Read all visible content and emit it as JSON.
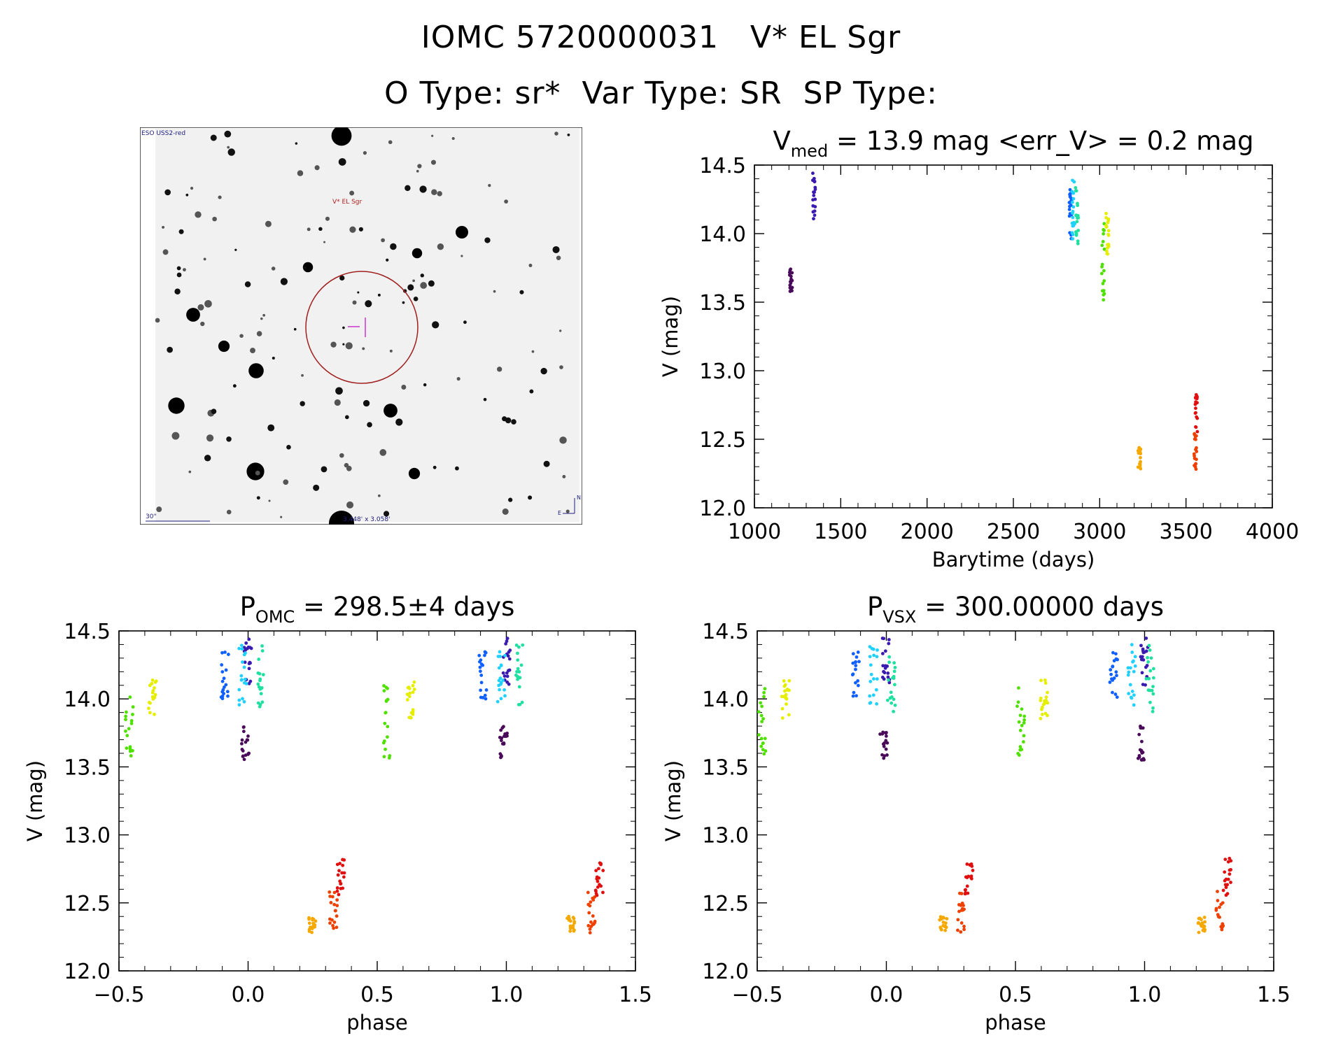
{
  "header": {
    "line1": "IOMC 5720000031   V* EL Sgr",
    "line2": "O Type: sr*  Var Type: SR  SP Type:"
  },
  "finder": {
    "survey": "ESO USS2-red",
    "target": "V* EL Sgr",
    "scale_label": "30\"",
    "fov_label": "3.448' x 3.058'",
    "north": "N",
    "east": "E"
  },
  "colors": {
    "purple_dark": "#4a0a5a",
    "violet": "#3a1ab0",
    "blue": "#1060ff",
    "cyan": "#20d0ff",
    "teal": "#20e0a0",
    "green": "#50e000",
    "yellow": "#e6ee00",
    "orange": "#f5a800",
    "redorange": "#ee4000",
    "red": "#e01010"
  },
  "chart_data": [
    {
      "id": "lightcurve",
      "type": "scatter",
      "title_main": "V",
      "title_sub": "med",
      "title_rest": " = 13.9 mag <err_V> = 0.2 mag",
      "xlabel": "Barytime (days)",
      "ylabel": "V (mag)",
      "xlim": [
        1000,
        4000
      ],
      "ylim": [
        14.5,
        12.0
      ],
      "xticks": [
        "1000",
        "1500",
        "2000",
        "2500",
        "3000",
        "3500",
        "4000"
      ],
      "yticks": [
        "12.0",
        "12.5",
        "13.0",
        "13.5",
        "14.0",
        "14.5"
      ],
      "groups": [
        {
          "color": "purple_dark",
          "x": 1212,
          "ymin": 13.55,
          "ymax": 13.8
        },
        {
          "color": "violet",
          "x": 1345,
          "ymin": 14.1,
          "ymax": 14.45
        },
        {
          "color": "blue",
          "x": 2830,
          "ymin": 13.95,
          "ymax": 14.35
        },
        {
          "color": "cyan",
          "x": 2848,
          "ymin": 13.95,
          "ymax": 14.4
        },
        {
          "color": "teal",
          "x": 2868,
          "ymin": 13.9,
          "ymax": 14.35
        },
        {
          "color": "green",
          "x": 3020,
          "ymin": 13.5,
          "ymax": 14.1
        },
        {
          "color": "yellow",
          "x": 3045,
          "ymin": 13.85,
          "ymax": 14.15
        },
        {
          "color": "orange",
          "x": 3230,
          "ymin": 12.28,
          "ymax": 12.44
        },
        {
          "color": "redorange",
          "x": 3555,
          "ymin": 12.28,
          "ymax": 12.55
        },
        {
          "color": "red",
          "x": 3560,
          "ymin": 12.55,
          "ymax": 12.83
        }
      ]
    },
    {
      "id": "phase_omc",
      "type": "scatter",
      "title_main": "P",
      "title_sub": "OMC",
      "title_rest": " = 298.5±4 days",
      "xlabel": "phase",
      "ylabel": "V (mag)",
      "xlim": [
        -0.5,
        1.5
      ],
      "ylim": [
        14.5,
        12.0
      ],
      "xticks": [
        "−0.5",
        "0.0",
        "0.5",
        "1.0",
        "1.5"
      ],
      "yticks": [
        "12.0",
        "12.5",
        "13.0",
        "13.5",
        "14.0",
        "14.5"
      ],
      "groups": [
        {
          "color": "purple_dark",
          "phase": -0.01,
          "ymin": 13.55,
          "ymax": 13.8
        },
        {
          "color": "violet",
          "phase": 0.0,
          "ymin": 14.1,
          "ymax": 14.45
        },
        {
          "color": "blue",
          "phase": -0.09,
          "ymin": 14.0,
          "ymax": 14.35
        },
        {
          "color": "cyan",
          "phase": -0.02,
          "ymin": 13.95,
          "ymax": 14.4
        },
        {
          "color": "teal",
          "phase": 0.05,
          "ymin": 13.9,
          "ymax": 14.4
        },
        {
          "color": "green",
          "phase": -0.46,
          "ymin": 13.55,
          "ymax": 14.1
        },
        {
          "color": "yellow",
          "phase": -0.37,
          "ymin": 13.85,
          "ymax": 14.15
        },
        {
          "color": "orange",
          "phase": 0.25,
          "ymin": 12.28,
          "ymax": 12.4
        },
        {
          "color": "redorange",
          "phase": 0.33,
          "ymin": 12.28,
          "ymax": 12.6
        },
        {
          "color": "red",
          "phase": 0.36,
          "ymin": 12.55,
          "ymax": 12.83
        }
      ]
    },
    {
      "id": "phase_vsx",
      "type": "scatter",
      "title_main": "P",
      "title_sub": "VSX",
      "title_rest": " = 300.00000 days",
      "xlabel": "phase",
      "ylabel": "V (mag)",
      "xlim": [
        -0.5,
        1.5
      ],
      "ylim": [
        14.5,
        12.0
      ],
      "xticks": [
        "−0.5",
        "0.0",
        "0.5",
        "1.0",
        "1.5"
      ],
      "yticks": [
        "12.0",
        "12.5",
        "13.0",
        "13.5",
        "14.0",
        "14.5"
      ],
      "groups": [
        {
          "color": "purple_dark",
          "phase": -0.01,
          "ymin": 13.55,
          "ymax": 13.8
        },
        {
          "color": "violet",
          "phase": 0.0,
          "ymin": 14.1,
          "ymax": 14.45
        },
        {
          "color": "blue",
          "phase": -0.12,
          "ymin": 14.0,
          "ymax": 14.35
        },
        {
          "color": "cyan",
          "phase": -0.05,
          "ymin": 13.95,
          "ymax": 14.4
        },
        {
          "color": "teal",
          "phase": 0.02,
          "ymin": 13.9,
          "ymax": 14.4
        },
        {
          "color": "green",
          "phase": -0.48,
          "ymin": 13.55,
          "ymax": 14.1
        },
        {
          "color": "yellow",
          "phase": -0.39,
          "ymin": 13.85,
          "ymax": 14.15
        },
        {
          "color": "orange",
          "phase": 0.22,
          "ymin": 12.28,
          "ymax": 12.4
        },
        {
          "color": "redorange",
          "phase": 0.29,
          "ymin": 12.28,
          "ymax": 12.6
        },
        {
          "color": "red",
          "phase": 0.32,
          "ymin": 12.55,
          "ymax": 12.83
        }
      ]
    }
  ]
}
